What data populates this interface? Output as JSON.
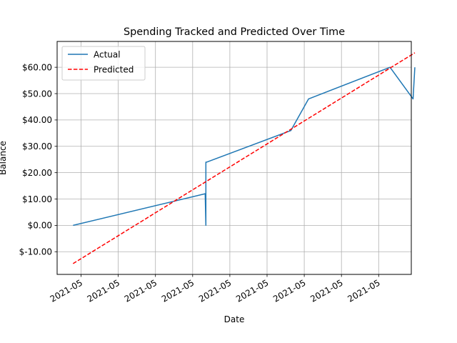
{
  "chart_data": {
    "type": "line",
    "title": "Spending Tracked and Predicted Over Time",
    "xlabel": "Date",
    "ylabel": "Balance",
    "x_axis_type": "date",
    "x_tick_labels": [
      "2021-05",
      "2021-05",
      "2021-05",
      "2021-05",
      "2021-05",
      "2021-05",
      "2021-05",
      "2021-05",
      "2021-05"
    ],
    "x_tick_rotation": "30 degrees",
    "xlim": [
      0,
      100
    ],
    "ylim": [
      -18.6,
      69.8
    ],
    "y_ticks": [
      -10,
      0,
      10,
      20,
      30,
      40,
      50,
      60
    ],
    "y_tick_labels": [
      "$-10.00",
      "$0.00",
      "$10.00",
      "$20.00",
      "$30.00",
      "$40.00",
      "$50.00",
      "$60.00"
    ],
    "grid": true,
    "legend_position": "top-left",
    "series": [
      {
        "name": "Actual",
        "style": "solid",
        "color": "#1f77b4",
        "x": [
          4.5,
          41.8,
          42.0,
          42.0,
          42.2,
          66.0,
          71.0,
          94.0,
          100.5,
          101.0
        ],
        "y": [
          0,
          12,
          0,
          24,
          24,
          36,
          48,
          60,
          48,
          60
        ]
      },
      {
        "name": "Predicted",
        "style": "dashed",
        "color": "#ff0000",
        "x": [
          4.5,
          101.0
        ],
        "y": [
          -14.5,
          65.5
        ]
      }
    ]
  }
}
